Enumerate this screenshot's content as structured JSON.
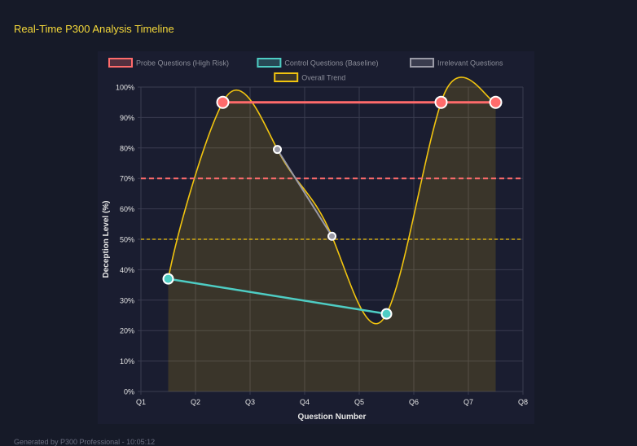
{
  "page": {
    "title": "Real-Time P300 Analysis Timeline",
    "footer": "Generated by P300 Professional - 10:05:12"
  },
  "colors": {
    "probe": "#ff6b6b",
    "control": "#4ecdc4",
    "irrelevant": "#9a9aa6",
    "trend": "#f1c40f",
    "grid": "#3a3d50",
    "text": "#e6e6e6"
  },
  "chart_data": {
    "type": "line",
    "xlabel": "Question Number",
    "ylabel": "Deception Level (%)",
    "ylim": [
      0,
      100
    ],
    "xlim": [
      1,
      8
    ],
    "x_ticks": [
      1,
      2,
      3,
      4,
      5,
      6,
      7,
      8
    ],
    "x_tick_labels": [
      "Q1",
      "Q2",
      "Q3",
      "Q4",
      "Q5",
      "Q6",
      "Q7",
      "Q8"
    ],
    "y_ticks": [
      0,
      10,
      20,
      30,
      40,
      50,
      60,
      70,
      80,
      90,
      100
    ],
    "y_tick_labels": [
      "0%",
      "10%",
      "20%",
      "30%",
      "40%",
      "50%",
      "60%",
      "70%",
      "80%",
      "90%",
      "100%"
    ],
    "grid": true,
    "legend_position": "top",
    "series": [
      {
        "name": "Probe Questions (High Risk)",
        "color": "#ff6b6b",
        "points": [
          [
            2.5,
            95
          ],
          [
            6.5,
            95
          ],
          [
            7.5,
            95
          ]
        ]
      },
      {
        "name": "Control Questions (Baseline)",
        "color": "#4ecdc4",
        "points": [
          [
            1.5,
            37
          ],
          [
            5.5,
            25.5
          ]
        ]
      },
      {
        "name": "Irrelevant Questions",
        "color": "#9a9aa6",
        "points": [
          [
            3.5,
            79.5
          ],
          [
            4.5,
            51
          ]
        ]
      },
      {
        "name": "Overall Trend",
        "color": "#f1c40f",
        "fill": true,
        "points": [
          [
            1.5,
            37
          ],
          [
            2.5,
            95
          ],
          [
            3.5,
            79.5
          ],
          [
            4.5,
            51
          ],
          [
            5.5,
            25.5
          ],
          [
            6.5,
            95
          ],
          [
            7.5,
            95
          ]
        ]
      }
    ],
    "thresholds": [
      {
        "value": 70,
        "color": "#ff6b6b"
      },
      {
        "value": 50,
        "color": "#f1c40f"
      }
    ]
  }
}
